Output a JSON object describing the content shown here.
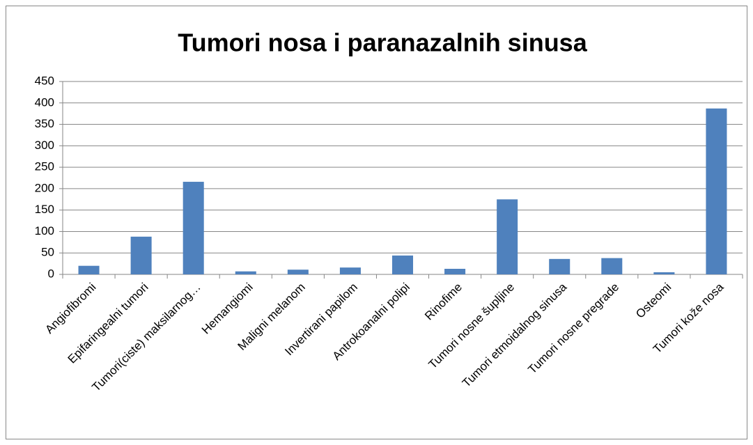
{
  "chart_data": {
    "type": "bar",
    "title": "Tumori nosa i paranazalnih sinusa",
    "categories": [
      "Angiofibromi",
      "Epifaringealni tumori",
      "Tumori(ciste) maksilarnog…",
      "Hemangiomi",
      "Maligni melanom",
      "Invertirani papilom",
      "Antrokoanalni polipi",
      "Rinofime",
      "Tumori nosne šupljine",
      "Tumori etmoidalnog sinusa",
      "Tumori nosne pregrade",
      "Osteomi",
      "Tumori kože nosa"
    ],
    "values": [
      20,
      88,
      216,
      7,
      11,
      16,
      44,
      13,
      175,
      36,
      38,
      5,
      387
    ],
    "color": "#4f81bd",
    "ylim": [
      0,
      450
    ],
    "yticks": [
      0,
      50,
      100,
      150,
      200,
      250,
      300,
      350,
      400,
      450
    ],
    "grid": true
  }
}
